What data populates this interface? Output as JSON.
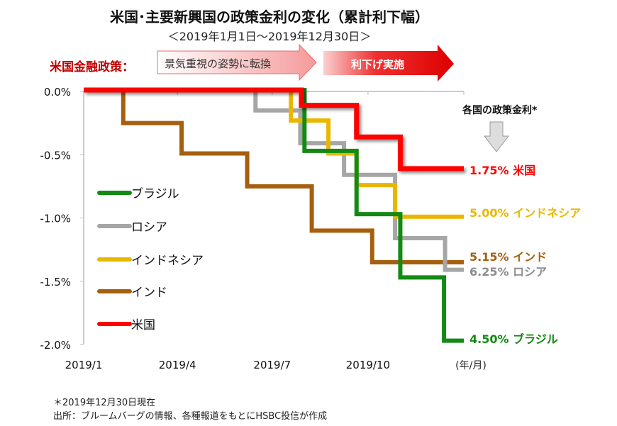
{
  "title": "米国･主要新興国の政策金利の変化（累計利下幅）",
  "subtitle": "＜2019年1月1日～2019年12月30日＞",
  "policy_banner": {
    "label": "米国金融政策：",
    "arrow1": "景気重視の姿勢に転換",
    "arrow2": "利下げ実施",
    "arrow1_color": "#f8b0b0",
    "arrow2_color": "#e00000"
  },
  "rates_header": "各国の政策金利*",
  "notes": [
    "＊2019年12月30日現在",
    "出所：ブルームバーグの情報、各種報道をもとにHSBC投信が作成"
  ],
  "chart_data": {
    "type": "line",
    "step": true,
    "title": "米国･主要新興国の政策金利の変化（累計利下幅）",
    "xlabel": "(年/月)",
    "ylabel": "",
    "x_unit": "days since 2019/1/1",
    "xlim": [
      0,
      365
    ],
    "ylim": [
      -2.0,
      0.0
    ],
    "x_ticks": [
      {
        "day": 0,
        "label": "2019/1"
      },
      {
        "day": 90,
        "label": "2019/4"
      },
      {
        "day": 181,
        "label": "2019/7"
      },
      {
        "day": 273,
        "label": "2019/10"
      }
    ],
    "y_ticks": [
      {
        "v": 0,
        "label": "0.0%"
      },
      {
        "v": -0.5,
        "label": "-0.5%"
      },
      {
        "v": -1.0,
        "label": "-1.0%"
      },
      {
        "v": -1.5,
        "label": "-1.5%"
      },
      {
        "v": -2.0,
        "label": "-2.0%"
      }
    ],
    "legend_position": "left",
    "series": [
      {
        "name": "ブラジル",
        "color": "#138a13",
        "end_label": "4.50% ブラジル",
        "points": [
          [
            0,
            0
          ],
          [
            212,
            -0.47
          ],
          [
            262,
            -0.97
          ],
          [
            304,
            -1.47
          ],
          [
            346,
            -1.97
          ],
          [
            365,
            -1.97
          ]
        ]
      },
      {
        "name": "ロシア",
        "color": "#a6a6a6",
        "end_label": "6.25% ロシア",
        "points": [
          [
            0,
            0
          ],
          [
            165,
            -0.15
          ],
          [
            208,
            -0.41
          ],
          [
            250,
            -0.66
          ],
          [
            299,
            -1.16
          ],
          [
            347,
            -1.41
          ],
          [
            365,
            -1.41
          ]
        ]
      },
      {
        "name": "インドネシア",
        "color": "#eab700",
        "end_label": "5.00% インドネシア",
        "points": [
          [
            0,
            0
          ],
          [
            199,
            -0.23
          ],
          [
            235,
            -0.49
          ],
          [
            262,
            -0.74
          ],
          [
            299,
            -0.99
          ],
          [
            365,
            -0.99
          ]
        ]
      },
      {
        "name": "インド",
        "color": "#a65f0e",
        "end_label": "5.15% インド",
        "points": [
          [
            0,
            0
          ],
          [
            38,
            -0.25
          ],
          [
            94,
            -0.49
          ],
          [
            157,
            -0.75
          ],
          [
            219,
            -1.1
          ],
          [
            277,
            -1.35
          ],
          [
            365,
            -1.35
          ]
        ]
      },
      {
        "name": "米国",
        "color": "#ff0000",
        "end_label": "1.75% 米国",
        "points": [
          [
            0,
            0
          ],
          [
            209,
            -0.11
          ],
          [
            262,
            -0.36
          ],
          [
            304,
            -0.61
          ],
          [
            365,
            -0.61
          ]
        ]
      }
    ]
  }
}
